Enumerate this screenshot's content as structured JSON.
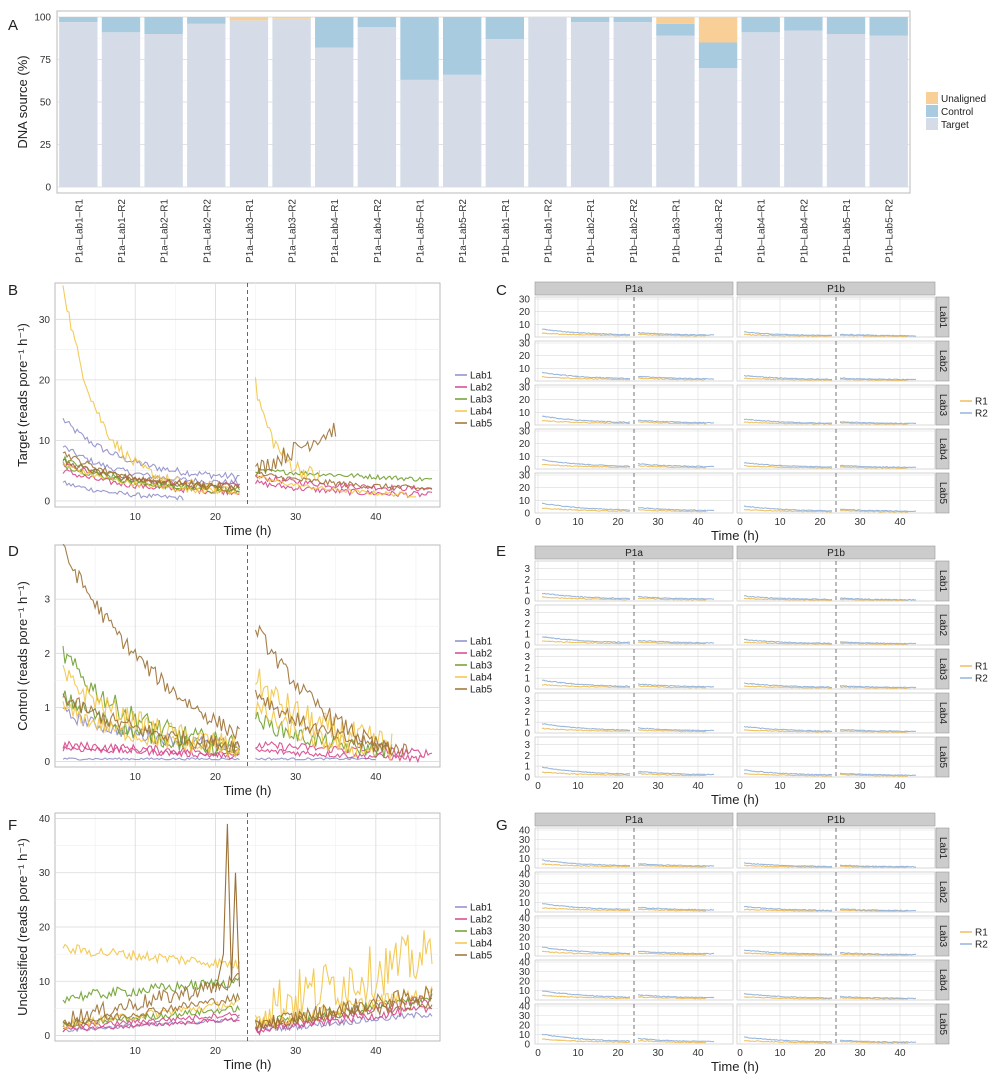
{
  "panel_letters": [
    "A",
    "B",
    "C",
    "D",
    "E",
    "F",
    "G"
  ],
  "colors": {
    "Target": "#d5dce8",
    "Control": "#a9cbe0",
    "Unaligned": "#f8cf97",
    "Lab1": "#8e8ec8",
    "Lab2": "#d6458a",
    "Lab3": "#6d9e2c",
    "Lab4": "#f2c548",
    "Lab5": "#9c7035",
    "R1": "#efbe5a",
    "R2": "#94b4db",
    "grid_major": "#d9d9d9",
    "grid_minor": "#efefef",
    "strip_bg": "#cccccc"
  },
  "chart_data": [
    {
      "id": "A",
      "type": "bar",
      "stacked": true,
      "ylabel": "DNA source (%)",
      "ylim": [
        0,
        100
      ],
      "yticks": [
        0,
        25,
        50,
        75,
        100
      ],
      "categories": [
        "P1a–Lab1–R1",
        "P1a–Lab1–R2",
        "P1a–Lab2–R1",
        "P1a–Lab2–R2",
        "P1a–Lab3–R1",
        "P1a–Lab3–R2",
        "P1a–Lab4–R1",
        "P1a–Lab4–R2",
        "P1a–Lab5–R1",
        "P1a–Lab5–R2",
        "P1b–Lab1–R1",
        "P1b–Lab1–R2",
        "P1b–Lab2–R1",
        "P1b–Lab2–R2",
        "P1b–Lab3–R1",
        "P1b–Lab3–R2",
        "P1b–Lab4–R1",
        "P1b–Lab4–R2",
        "P1b–Lab5–R1",
        "P1b–Lab5–R2"
      ],
      "series": [
        {
          "name": "Target",
          "values": [
            97,
            91,
            90,
            96,
            98,
            99,
            82,
            94,
            63,
            66,
            87,
            100,
            97,
            97,
            89,
            70,
            91,
            92,
            90,
            89
          ]
        },
        {
          "name": "Control",
          "values": [
            3,
            9,
            10,
            4,
            0,
            0,
            18,
            6,
            37,
            34,
            13,
            0,
            3,
            3,
            7,
            15,
            9,
            8,
            10,
            11
          ]
        },
        {
          "name": "Unaligned",
          "values": [
            0,
            0,
            0,
            0,
            2,
            1,
            0,
            0,
            0,
            0,
            0,
            0,
            0,
            0,
            4,
            15,
            0,
            0,
            0,
            0
          ]
        }
      ],
      "legend": [
        "Unaligned",
        "Control",
        "Target"
      ],
      "legend_position": "right"
    },
    {
      "id": "B",
      "type": "line",
      "ylabel": "Target (reads pore⁻¹ h⁻¹)",
      "xlabel": "Time (h)",
      "xlim": [
        0,
        48
      ],
      "ylim": [
        -1,
        36
      ],
      "xticks": [
        10,
        20,
        30,
        40
      ],
      "yticks": [
        0,
        10,
        20,
        30
      ],
      "vline": 24,
      "legend": [
        "Lab1",
        "Lab2",
        "Lab3",
        "Lab4",
        "Lab5"
      ],
      "series": [
        {
          "name": "Lab1",
          "seg1": {
            "x": [
              1,
              23
            ],
            "start": 13.5,
            "end": 4,
            "k": 3,
            "noise": 0.6
          }
        },
        {
          "name": "Lab1",
          "seg1": {
            "x": [
              1,
              23
            ],
            "start": 9,
            "end": 3,
            "k": 3,
            "noise": 0.5
          }
        },
        {
          "name": "Lab1",
          "seg1": {
            "x": [
              1,
              16
            ],
            "start": 3,
            "end": 0.5,
            "k": 2,
            "noise": 0.4
          }
        },
        {
          "name": "Lab2",
          "seg1": {
            "x": [
              1,
              23
            ],
            "start": 6,
            "end": 2.5,
            "k": 2.5,
            "noise": 0.5
          },
          "seg2": {
            "x": [
              25,
              47
            ],
            "start": 4,
            "end": 2,
            "k": 2,
            "noise": 0.5
          }
        },
        {
          "name": "Lab2",
          "seg1": {
            "x": [
              1,
              23
            ],
            "start": 5,
            "end": 1.5,
            "k": 2.5,
            "noise": 0.5
          },
          "seg2": {
            "x": [
              25,
              47
            ],
            "start": 3,
            "end": 1,
            "k": 2,
            "noise": 0.5
          }
        },
        {
          "name": "Lab3",
          "seg1": {
            "x": [
              1,
              23
            ],
            "start": 7,
            "end": 1.5,
            "k": 2.5,
            "noise": 0.5
          },
          "seg2": {
            "x": [
              25,
              47
            ],
            "start": 5,
            "end": 3.5,
            "k": 1,
            "noise": 0.4
          }
        },
        {
          "name": "Lab3",
          "seg1": {
            "x": [
              1,
              23
            ],
            "start": 6,
            "end": 2,
            "k": 2.5,
            "noise": 0.5
          }
        },
        {
          "name": "Lab4",
          "seg1": {
            "x": [
              1,
              23
            ],
            "start": 36,
            "end": 2,
            "k": 5,
            "noise": 1
          },
          "seg2": {
            "x": [
              25,
              33
            ],
            "start": 19,
            "end": 4,
            "k": 3,
            "noise": 1.5
          }
        },
        {
          "name": "Lab4",
          "seg1": {
            "x": [
              1,
              23
            ],
            "start": 6,
            "end": 1.5,
            "k": 2.5,
            "noise": 0.5
          },
          "seg2": {
            "x": [
              25,
              45
            ],
            "start": 4,
            "end": 1,
            "k": 2,
            "noise": 0.4
          }
        },
        {
          "name": "Lab5",
          "seg1": {
            "x": [
              1,
              23
            ],
            "start": 8,
            "end": 2,
            "k": 2.5,
            "noise": 0.5
          },
          "seg2": {
            "x": [
              25,
              35
            ],
            "start": 5,
            "end": 12,
            "k": 1,
            "noise": 1.5
          }
        },
        {
          "name": "Lab5",
          "seg1": {
            "x": [
              1,
              23
            ],
            "start": 6.5,
            "end": 2.5,
            "k": 2.5,
            "noise": 0.5
          },
          "seg2": {
            "x": [
              25,
              47
            ],
            "start": 4.5,
            "end": 2,
            "k": 1.5,
            "noise": 0.5
          }
        }
      ]
    },
    {
      "id": "C",
      "type": "line",
      "facets": true,
      "xlabel": "Time (h)",
      "columns": [
        "P1a",
        "P1b"
      ],
      "rows": [
        "Lab1",
        "Lab2",
        "Lab3",
        "Lab4",
        "Lab5"
      ],
      "xticks": [
        0,
        10,
        20,
        30,
        40
      ],
      "yticks": [
        0,
        10,
        20,
        30
      ],
      "ylim": [
        0,
        30
      ],
      "vline": 24,
      "legend": [
        "R1",
        "R2"
      ]
    },
    {
      "id": "D",
      "type": "line",
      "ylabel": "Control (reads pore⁻¹ h⁻¹)",
      "xlabel": "Time (h)",
      "xlim": [
        0,
        48
      ],
      "ylim": [
        -0.1,
        4
      ],
      "xticks": [
        10,
        20,
        30,
        40
      ],
      "yticks": [
        0,
        1,
        2,
        3
      ],
      "vline": 24,
      "legend": [
        "Lab1",
        "Lab2",
        "Lab3",
        "Lab4",
        "Lab5"
      ],
      "series": [
        {
          "name": "Lab1",
          "seg1": {
            "x": [
              1,
              23
            ],
            "start": 0.05,
            "end": 0.05,
            "k": 1,
            "noise": 0.02
          },
          "seg2": {
            "x": [
              25,
              40
            ],
            "start": 0.05,
            "end": 0.05,
            "k": 1,
            "noise": 0.02
          }
        },
        {
          "name": "Lab1",
          "seg1": {
            "x": [
              1,
              23
            ],
            "start": 0.9,
            "end": 0.3,
            "k": 2,
            "noise": 0.12
          }
        },
        {
          "name": "Lab2",
          "seg1": {
            "x": [
              1,
              23
            ],
            "start": 0.3,
            "end": 0.15,
            "k": 1,
            "noise": 0.08
          },
          "seg2": {
            "x": [
              25,
              47
            ],
            "start": 0.3,
            "end": 0.15,
            "k": 1,
            "noise": 0.08
          }
        },
        {
          "name": "Lab2",
          "seg1": {
            "x": [
              1,
              23
            ],
            "start": 0.25,
            "end": 0.1,
            "k": 1,
            "noise": 0.06
          },
          "seg2": {
            "x": [
              25,
              46
            ],
            "start": 0.2,
            "end": 0.05,
            "k": 1,
            "noise": 0.06
          }
        },
        {
          "name": "Lab3",
          "seg1": {
            "x": [
              1,
              23
            ],
            "start": 2,
            "end": 0.3,
            "k": 2.5,
            "noise": 0.2
          },
          "seg2": {
            "x": [
              25,
              42
            ],
            "start": 0.8,
            "end": 0.2,
            "k": 2,
            "noise": 0.15
          }
        },
        {
          "name": "Lab3",
          "seg1": {
            "x": [
              1,
              23
            ],
            "start": 1.2,
            "end": 0.2,
            "k": 2,
            "noise": 0.15
          }
        },
        {
          "name": "Lab4",
          "seg1": {
            "x": [
              1,
              23
            ],
            "start": 1.6,
            "end": 0.3,
            "k": 2,
            "noise": 0.2
          },
          "seg2": {
            "x": [
              25,
              42
            ],
            "start": 1.5,
            "end": 0.3,
            "k": 2,
            "noise": 0.3
          }
        },
        {
          "name": "Lab4",
          "seg1": {
            "x": [
              1,
              23
            ],
            "start": 1.0,
            "end": 0.2,
            "k": 2,
            "noise": 0.15
          },
          "seg2": {
            "x": [
              25,
              40
            ],
            "start": 1.0,
            "end": 0.2,
            "k": 2,
            "noise": 0.2
          }
        },
        {
          "name": "Lab5",
          "seg1": {
            "x": [
              1,
              23
            ],
            "start": 3.9,
            "end": 0.5,
            "k": 1.3,
            "noise": 0.15
          },
          "seg2": {
            "x": [
              25,
              42
            ],
            "start": 2.5,
            "end": 0.2,
            "k": 1.5,
            "noise": 0.15
          }
        },
        {
          "name": "Lab5",
          "seg1": {
            "x": [
              1,
              23
            ],
            "start": 1.2,
            "end": 0.3,
            "k": 2,
            "noise": 0.15
          },
          "seg2": {
            "x": [
              25,
              44
            ],
            "start": 1.3,
            "end": 0.2,
            "k": 2,
            "noise": 0.15
          }
        }
      ]
    },
    {
      "id": "E",
      "type": "line",
      "facets": true,
      "xlabel": "Time (h)",
      "columns": [
        "P1a",
        "P1b"
      ],
      "rows": [
        "Lab1",
        "Lab2",
        "Lab3",
        "Lab4",
        "Lab5"
      ],
      "xticks": [
        0,
        10,
        20,
        30,
        40
      ],
      "yticks": [
        0,
        1,
        2,
        3
      ],
      "ylim": [
        0,
        3.5
      ],
      "vline": 24,
      "legend": [
        "R1",
        "R2"
      ]
    },
    {
      "id": "F",
      "type": "line",
      "ylabel": "Unclassified (reads pore⁻¹ h⁻¹)",
      "xlabel": "Time (h)",
      "xlim": [
        0,
        48
      ],
      "ylim": [
        -1,
        41
      ],
      "xticks": [
        10,
        20,
        30,
        40
      ],
      "yticks": [
        0,
        10,
        20,
        30,
        40
      ],
      "vline": 24,
      "legend": [
        "Lab1",
        "Lab2",
        "Lab3",
        "Lab4",
        "Lab5"
      ],
      "series": [
        {
          "name": "Lab1",
          "seg1": {
            "x": [
              1,
              23
            ],
            "start": 1,
            "end": 3,
            "k": 1,
            "noise": 0.4
          },
          "seg2": {
            "x": [
              25,
              47
            ],
            "start": 1,
            "end": 4,
            "k": 1,
            "noise": 0.6
          }
        },
        {
          "name": "Lab2",
          "seg1": {
            "x": [
              1,
              23
            ],
            "start": 1.5,
            "end": 4,
            "k": 1,
            "noise": 0.5
          },
          "seg2": {
            "x": [
              25,
              47
            ],
            "start": 1,
            "end": 7,
            "k": 1,
            "noise": 1
          }
        },
        {
          "name": "Lab2",
          "seg1": {
            "x": [
              1,
              23
            ],
            "start": 1,
            "end": 3,
            "k": 1,
            "noise": 0.4
          },
          "seg2": {
            "x": [
              25,
              47
            ],
            "start": 1,
            "end": 5,
            "k": 1,
            "noise": 0.8
          }
        },
        {
          "name": "Lab3",
          "seg1": {
            "x": [
              1,
              23
            ],
            "start": 7,
            "end": 10,
            "k": 1,
            "noise": 1
          },
          "seg2": {
            "x": [
              25,
              47
            ],
            "start": 2,
            "end": 7,
            "k": 1,
            "noise": 1
          }
        },
        {
          "name": "Lab3",
          "seg1": {
            "x": [
              1,
              23
            ],
            "start": 2,
            "end": 5,
            "k": 1,
            "noise": 0.6
          }
        },
        {
          "name": "Lab4",
          "seg1": {
            "x": [
              1,
              23
            ],
            "start": 16,
            "end": 13,
            "k": 1,
            "noise": 1
          },
          "seg2": {
            "x": [
              25,
              47
            ],
            "start": 5,
            "end": 15,
            "k": 1,
            "noise": 5
          }
        },
        {
          "name": "Lab4",
          "seg1": {
            "x": [
              1,
              23
            ],
            "start": 2,
            "end": 6,
            "k": 1,
            "noise": 0.8
          },
          "seg2": {
            "x": [
              25,
              47
            ],
            "start": 2,
            "end": 8,
            "k": 1,
            "noise": 1.5
          }
        },
        {
          "name": "Lab5",
          "seg1": {
            "x": [
              1,
              23
            ],
            "start": 3,
            "end": 10,
            "k": 1,
            "noise": 1.5
          },
          "seg2": {
            "x": [
              25,
              47
            ],
            "start": 2,
            "end": 8,
            "k": 1,
            "noise": 1.5
          }
        },
        {
          "name": "Lab5",
          "seg1": {
            "x": [
              1,
              23
            ],
            "start": 2,
            "end": 7,
            "k": 1,
            "noise": 0.8
          },
          "seg2": {
            "x": [
              25,
              47
            ],
            "start": 2,
            "end": 6,
            "k": 1,
            "noise": 1
          }
        }
      ],
      "spike": {
        "name": "Lab5",
        "x": [
          20,
          21,
          21.5,
          22,
          22.5,
          23
        ],
        "y": [
          8,
          15,
          39,
          10,
          30,
          9
        ]
      }
    },
    {
      "id": "G",
      "type": "line",
      "facets": true,
      "xlabel": "Time (h)",
      "columns": [
        "P1a",
        "P1b"
      ],
      "rows": [
        "Lab1",
        "Lab2",
        "Lab3",
        "Lab4",
        "Lab5"
      ],
      "xticks": [
        0,
        10,
        20,
        30,
        40
      ],
      "yticks": [
        0,
        10,
        20,
        30,
        40
      ],
      "ylim": [
        0,
        40
      ],
      "vline": 24,
      "legend": [
        "R1",
        "R2"
      ]
    }
  ]
}
